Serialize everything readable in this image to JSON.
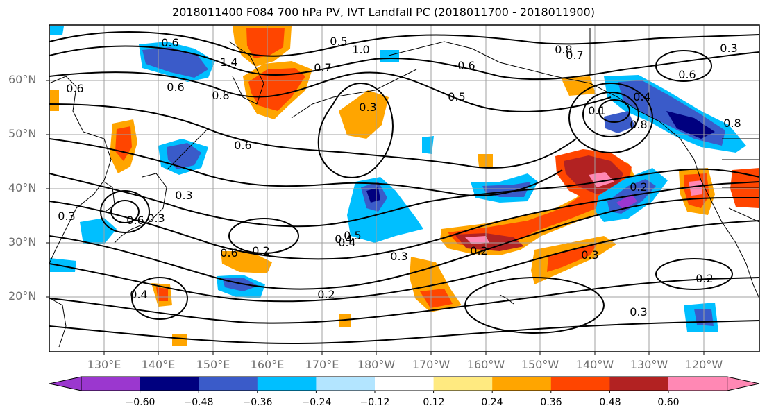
{
  "title": "2018011400 F084 700 hPa PV, IVT Landfall PC (2018011700 - 2018011900)",
  "lat_labels": [
    "60°N",
    "50°N",
    "40°N",
    "30°N",
    "20°N"
  ],
  "lon_labels": [
    "130°E",
    "140°E",
    "150°E",
    "160°E",
    "170°E",
    "180°W",
    "170°W",
    "160°W",
    "150°W",
    "140°W",
    "130°W",
    "120°W"
  ],
  "contour_labels": [
    "0.6",
    "0.6",
    "0.8",
    "1.4",
    "0.7",
    "0.6",
    "0.6",
    "1.0",
    "0.5",
    "0.5",
    "0.6",
    "0.8",
    "0.7",
    "0.6",
    "0.3",
    "0.8",
    "0.3",
    "0.4",
    "0.1",
    "0.8",
    "0.4",
    "0.6",
    "0.3",
    "0.3",
    "0.4",
    "0.5",
    "0.2",
    "0.6",
    "0.3",
    "0.2",
    "0.2",
    "0.3",
    "0.2",
    "0.3",
    "0.4",
    "0.3",
    "0.2"
  ],
  "colorbar": {
    "ticks": [
      "−0.60",
      "−0.48",
      "−0.36",
      "−0.24",
      "−0.12",
      "0.12",
      "0.24",
      "0.36",
      "0.48",
      "0.60"
    ],
    "colors": [
      "#9b37cf",
      "#00007f",
      "#3a5bc9",
      "#00bfff",
      "#b3e5ff",
      "#ffffff",
      "#ffea80",
      "#ffa500",
      "#ff4500",
      "#b22222",
      "#ff88b4"
    ],
    "under_color": "#9b37cf",
    "over_color": "#ff88b4"
  },
  "palette": {
    "positive_light": "#ffea80",
    "positive_mid": "#ffa500",
    "positive_strong": "#ff4500",
    "positive_deep": "#b22222",
    "positive_max": "#ff88b4",
    "negative_light": "#b3e5ff",
    "negative_mid": "#00bfff",
    "negative_strong": "#3a5bc9",
    "negative_deep": "#00007f",
    "negative_max": "#9b37cf"
  }
}
